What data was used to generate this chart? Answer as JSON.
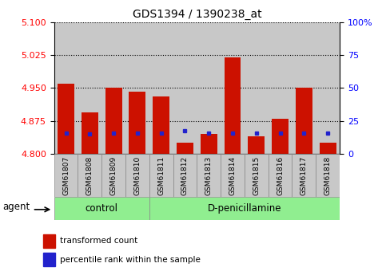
{
  "title": "GDS1394 / 1390238_at",
  "samples": [
    "GSM61807",
    "GSM61808",
    "GSM61809",
    "GSM61810",
    "GSM61811",
    "GSM61812",
    "GSM61813",
    "GSM61814",
    "GSM61815",
    "GSM61816",
    "GSM61817",
    "GSM61818"
  ],
  "red_values": [
    4.96,
    4.895,
    4.95,
    4.942,
    4.93,
    4.825,
    4.845,
    5.02,
    4.84,
    4.88,
    4.95,
    4.825
  ],
  "blue_values": [
    4.848,
    4.846,
    4.848,
    4.848,
    4.848,
    4.852,
    4.847,
    4.847,
    4.848,
    4.848,
    4.848,
    4.848
  ],
  "y_min": 4.8,
  "y_max": 5.1,
  "y_ticks_left": [
    4.8,
    4.875,
    4.95,
    5.025,
    5.1
  ],
  "y_ticks_right": [
    0,
    25,
    50,
    75,
    100
  ],
  "bar_color": "#cc1100",
  "dot_color": "#2222cc",
  "col_bg_color": "#c8c8c8",
  "control_bg": "#90ee90",
  "treatment_bg": "#90ee90",
  "n_control": 4,
  "control_label": "control",
  "treatment_label": "D-penicillamine",
  "agent_label": "agent",
  "legend_red": "transformed count",
  "legend_blue": "percentile rank within the sample",
  "bar_width": 0.7
}
